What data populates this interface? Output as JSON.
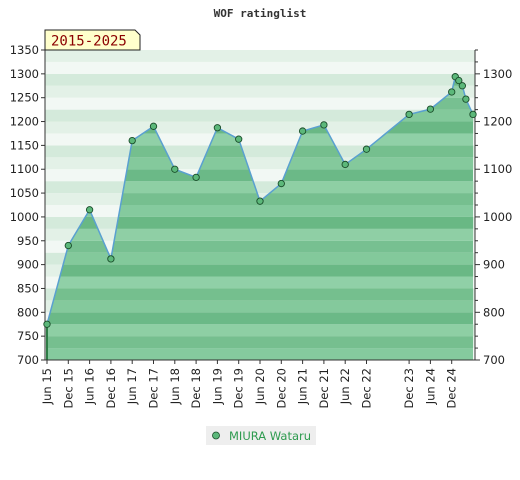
{
  "chart_data": {
    "type": "area",
    "title": "WOF ratinglist",
    "badge": "2015-2025",
    "xlabel": "",
    "ylabel": "",
    "ylim": [
      700,
      1350
    ],
    "y_ticks_left": [
      700,
      750,
      800,
      850,
      900,
      950,
      1000,
      1050,
      1100,
      1150,
      1200,
      1250,
      1300,
      1350
    ],
    "y_ticks_right": [
      700,
      800,
      900,
      1000,
      1100,
      1200,
      1300
    ],
    "x_range": [
      "2015-06",
      "2025-06"
    ],
    "x_ticks": [
      {
        "label": "Jun 15",
        "date": "2015-06"
      },
      {
        "label": "Dec 15",
        "date": "2015-12"
      },
      {
        "label": "Jun 16",
        "date": "2016-06"
      },
      {
        "label": "Dec 16",
        "date": "2016-12"
      },
      {
        "label": "Jun 17",
        "date": "2017-06"
      },
      {
        "label": "Dec 17",
        "date": "2017-12"
      },
      {
        "label": "Jun 18",
        "date": "2018-06"
      },
      {
        "label": "Dec 18",
        "date": "2018-12"
      },
      {
        "label": "Jun 19",
        "date": "2019-06"
      },
      {
        "label": "Dec 19",
        "date": "2019-12"
      },
      {
        "label": "Jun 20",
        "date": "2020-06"
      },
      {
        "label": "Dec 20",
        "date": "2020-12"
      },
      {
        "label": "Jun 21",
        "date": "2021-06"
      },
      {
        "label": "Dec 21",
        "date": "2021-12"
      },
      {
        "label": "Jun 22",
        "date": "2022-06"
      },
      {
        "label": "Dec 22",
        "date": "2022-12"
      },
      {
        "label": "Dec 23",
        "date": "2023-12"
      },
      {
        "label": "Jun 24",
        "date": "2024-06"
      },
      {
        "label": "Dec 24",
        "date": "2024-12"
      }
    ],
    "series": [
      {
        "name": "MIURA Wataru",
        "points": [
          {
            "date": "2015-06",
            "value": 775
          },
          {
            "date": "2015-12",
            "value": 940
          },
          {
            "date": "2016-06",
            "value": 1015
          },
          {
            "date": "2016-12",
            "value": 912
          },
          {
            "date": "2017-06",
            "value": 1160
          },
          {
            "date": "2017-12",
            "value": 1190
          },
          {
            "date": "2018-06",
            "value": 1100
          },
          {
            "date": "2018-12",
            "value": 1083
          },
          {
            "date": "2019-06",
            "value": 1187
          },
          {
            "date": "2019-12",
            "value": 1163
          },
          {
            "date": "2020-06",
            "value": 1033
          },
          {
            "date": "2020-12",
            "value": 1070
          },
          {
            "date": "2021-06",
            "value": 1180
          },
          {
            "date": "2021-12",
            "value": 1193
          },
          {
            "date": "2022-06",
            "value": 1110
          },
          {
            "date": "2022-12",
            "value": 1142
          },
          {
            "date": "2023-12",
            "value": 1215
          },
          {
            "date": "2024-06",
            "value": 1226
          },
          {
            "date": "2024-12",
            "value": 1262
          },
          {
            "date": "2025-01",
            "value": 1294
          },
          {
            "date": "2025-02",
            "value": 1286
          },
          {
            "date": "2025-03",
            "value": 1275
          },
          {
            "date": "2025-04",
            "value": 1247
          },
          {
            "date": "2025-06",
            "value": 1215
          }
        ]
      }
    ],
    "legend": "bottom-center",
    "grid": true,
    "colors": {
      "line": "#5aa0d0",
      "marker_fill": "#5cb87a",
      "marker_stroke": "#1a4d2a",
      "area_fill": "#6fbf8a",
      "badge_bg": "#ffffcc"
    }
  }
}
